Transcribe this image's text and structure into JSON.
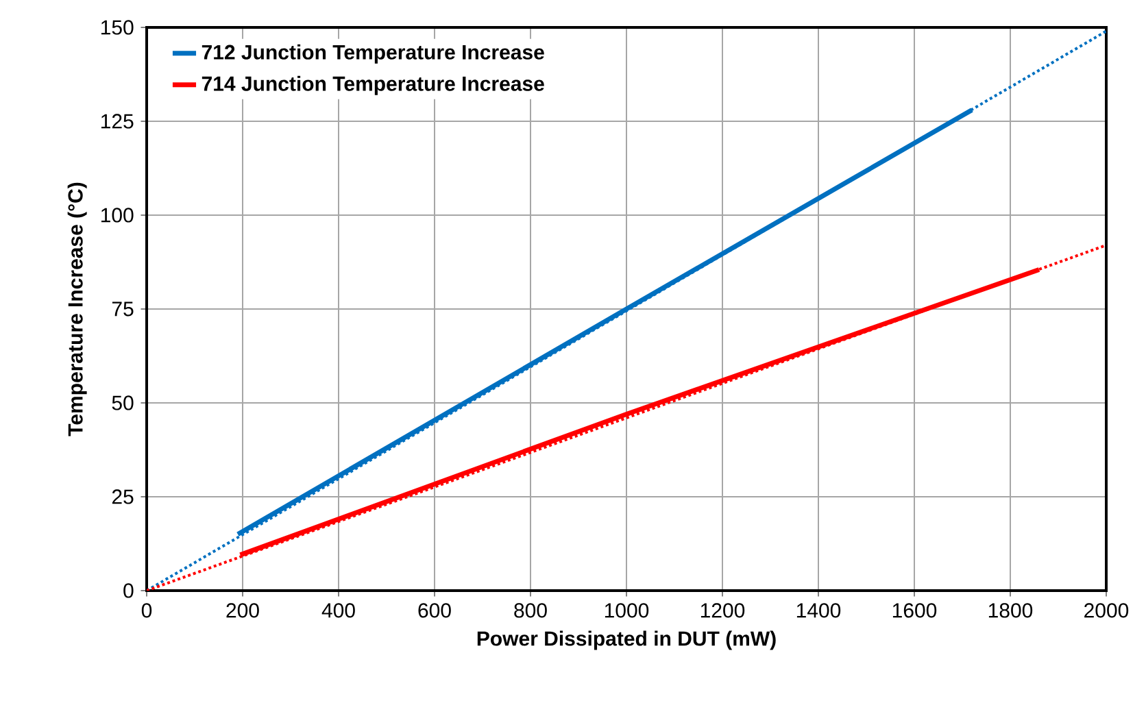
{
  "chart_data": {
    "type": "line",
    "xlabel": "Power Dissipated in DUT (mW)",
    "ylabel": "Temperature Increase (°C)",
    "xlim": [
      0,
      2000
    ],
    "ylim": [
      0,
      150
    ],
    "xticks": [
      0,
      200,
      400,
      600,
      800,
      1000,
      1200,
      1400,
      1600,
      1800,
      2000
    ],
    "yticks": [
      0,
      25,
      50,
      75,
      100,
      125,
      150
    ],
    "grid": true,
    "legend": "top left",
    "marker": "none",
    "series": [
      {
        "name": "712 Junction Temperature Increase",
        "color": "#0070c0",
        "x": [
          190,
          1000,
          1720
        ],
        "values": [
          15,
          75,
          128
        ],
        "line_style": "solid"
      },
      {
        "name": "714 Junction Temperature Increase",
        "color": "#ff0000",
        "x": [
          195,
          1000,
          1860
        ],
        "values": [
          9.5,
          47,
          85.5
        ],
        "line_style": "solid"
      },
      {
        "color": "#0070c0",
        "x": [
          0,
          2000
        ],
        "values": [
          0,
          149
        ],
        "line_style": "dotted"
      },
      {
        "color": "#ff0000",
        "x": [
          0,
          2000
        ],
        "values": [
          0,
          92
        ],
        "line_style": "dotted"
      }
    ]
  }
}
